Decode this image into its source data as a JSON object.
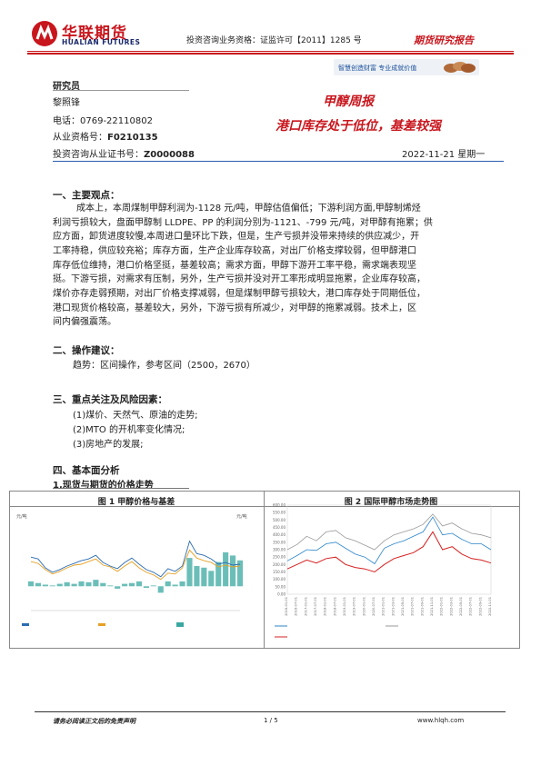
{
  "header": {
    "logo_cn": "华联期货",
    "logo_en": "HUALIAN FUTURES",
    "license": "投资咨询业务资格：证监许可【2011】1285 号",
    "report_type": "期货研究报告",
    "slogan": "智慧创造财富  专业成就价值",
    "brand_color": "#c8161d"
  },
  "researcher": {
    "title": "研究员",
    "name": "黎照锋",
    "phone": "电话：0769-22110802",
    "cert_label": "从业资格号：",
    "cert_value": "F0210135",
    "license_label": "投资咨询从业证书号：",
    "license_value": "Z0000088"
  },
  "report": {
    "title": "甲醇周报",
    "subtitle": "港口库存处于低位，基差较强",
    "date": "2022-11-21 星期一"
  },
  "sections": {
    "s1_title": "一、主要观点：",
    "s1_lines": [
      "成本上，本周煤制甲醇利润为-1128 元/吨，甲醇估值偏低；下游利润方面,甲醇制烯烃",
      "利润亏损较大，盘面甲醇制 LLDPE、PP 的利润分别为-1121、-799 元/吨，对甲醇有拖累；供",
      "应方面，卸货进度较慢,本周进口量环比下跌，但是，生产亏损并没带来持续的供应减少，开",
      "工率持稳，供应较充裕；库存方面，生产企业库存较高，对出厂价格支撑较弱，但甲醇港口",
      "库存低位维持，港口价格坚挺，基差较高；需求方面，甲醇下游开工率平稳，需求端表现坚",
      "挺。下游亏损，对需求有压制，另外，生产亏损并没对开工率形成明显拖累，企业库存较高，",
      "煤价亦存走弱预期，对出厂价格支撑减弱，但是煤制甲醇亏损较大，港口库存处于同期低位，",
      "港口现货价格较高，基差较大，另外，下游亏损有所减少，对甲醇的拖累减弱。技术上，区",
      "间内偏强震荡。"
    ],
    "s2_title": "二、操作建议：",
    "s2_text": "趋势：区间操作，参考区间（2500，2670）",
    "s3_title": "三、重点关注及风险因素：",
    "s3_items": [
      "(1)煤价、天然气、原油的走势;",
      "(2)MTO 的开机率变化情况;",
      "(3)房地产的发展;"
    ],
    "s4_title": "四、基本面分析",
    "s4_sub": "1.现货与期货的价格走势"
  },
  "figures": {
    "fig1_title": "图 1  甲醇价格与基差",
    "fig2_title": "图 2  国际甲醇市场走势图",
    "fig1_left_unit": "元/吨",
    "fig1_right_unit": "元/吨"
  },
  "chart_data": [
    {
      "type": "line",
      "title": "图 1  甲醇价格与基差",
      "ylim": [
        0,
        5000
      ],
      "y2lim": [
        -300,
        800
      ],
      "series": [
        {
          "name": "",
          "values": [
            3000,
            2900,
            2400,
            2150,
            2300,
            2500,
            2650,
            2800,
            2900,
            3100,
            2700,
            2500,
            2350,
            2700,
            2950,
            2600,
            2300,
            2150,
            1900,
            2350,
            2200,
            2500,
            3900,
            3200,
            3100,
            2900,
            2600,
            2700,
            2550,
            2600
          ]
        },
        {
          "name": "",
          "values": [
            2750,
            2650,
            2300,
            2050,
            2200,
            2400,
            2550,
            2600,
            2750,
            2900,
            2550,
            2450,
            2200,
            2500,
            2750,
            2400,
            2150,
            2000,
            1750,
            2100,
            2050,
            2400,
            3400,
            2950,
            2800,
            2700,
            2450,
            2550,
            2450,
            2500
          ]
        },
        {
          "name": "",
          "values": [
            60,
            40,
            20,
            10,
            30,
            50,
            30,
            60,
            50,
            80,
            40,
            10,
            -30,
            30,
            40,
            60,
            -20,
            10,
            -80,
            60,
            20,
            60,
            350,
            250,
            230,
            190,
            300,
            420,
            380,
            320
          ]
        }
      ]
    },
    {
      "type": "line",
      "title": "图 2  国际甲醇市场走势图",
      "ylim": [
        0,
        600
      ],
      "y2lim": [
        0,
        450
      ],
      "x": [
        "2016-01-01",
        "2016-07-01",
        "2017-01-01",
        "2017-07-01",
        "2018-01-01",
        "2018-07-01",
        "2019-01-01",
        "2019-07-01",
        "2020-01-01",
        "2020-07-01",
        "2021-01-01",
        "2021-03-01",
        "2021-05-01",
        "2021-07-01",
        "2021-09-01",
        "2021-11-01",
        "2022-01-01",
        "2022-03-01",
        "2022-05-01",
        "2022-07-01",
        "2022-09-01",
        "2022-11-01"
      ],
      "series": [
        {
          "name": "",
          "values": [
            225,
            260,
            300,
            295,
            340,
            350,
            310,
            270,
            250,
            205,
            310,
            340,
            360,
            390,
            420,
            520,
            400,
            410,
            370,
            340,
            340,
            300
          ]
        },
        {
          "name": "",
          "values": [
            300,
            335,
            390,
            360,
            420,
            430,
            380,
            360,
            330,
            300,
            360,
            400,
            420,
            440,
            470,
            540,
            460,
            480,
            440,
            410,
            400,
            380
          ]
        },
        {
          "name": "",
          "values": [
            170,
            200,
            230,
            210,
            240,
            250,
            200,
            180,
            170,
            150,
            200,
            240,
            260,
            280,
            320,
            420,
            300,
            320,
            270,
            240,
            230,
            210
          ]
        }
      ]
    }
  ],
  "colors": {
    "spot": "#2b6cb0",
    "futures": "#e6a024",
    "basis": "#3aa8a0",
    "intl1": "#2b86c9",
    "intl2": "#999999",
    "intl3": "#d62020"
  },
  "footer": {
    "disclaimer": "请务必阅读正文后的免责声明",
    "page": "1 / 5",
    "url": "www.hlqh.com"
  }
}
